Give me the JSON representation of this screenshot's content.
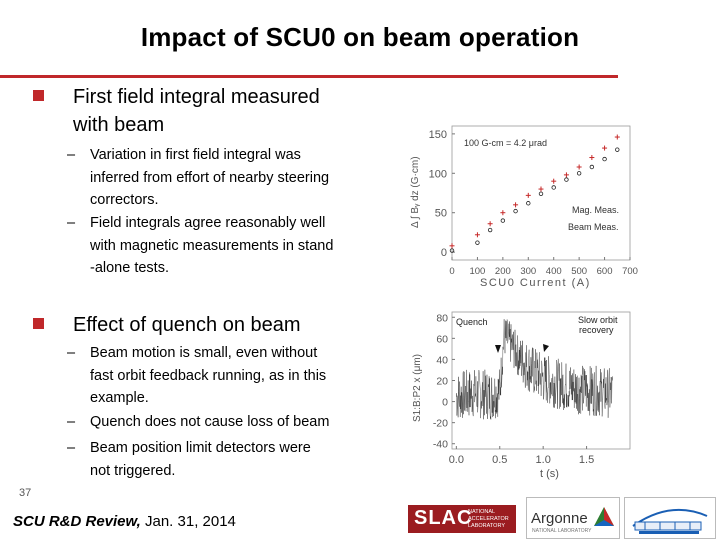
{
  "slide": {
    "title": "Impact of SCU0 on beam operation",
    "number": "37"
  },
  "bullets": [
    {
      "text_line1": "First field integral measured",
      "text_line2": "with beam",
      "subs": [
        {
          "lines": [
            "Variation in first field integral was",
            "inferred from effort of nearby steering",
            "correctors."
          ]
        },
        {
          "lines": [
            "Field integrals agree reasonably well",
            "with magnetic measurements in stand",
            "-alone tests."
          ]
        }
      ]
    },
    {
      "text_line1": "Effect of quench on beam",
      "subs": [
        {
          "lines": [
            "Beam motion is small, even without",
            "fast orbit feedback running, as in this",
            "example."
          ]
        },
        {
          "lines": [
            "Quench does not cause loss of beam"
          ]
        },
        {
          "lines": [
            "Beam position limit detectors were",
            "not triggered."
          ]
        }
      ]
    }
  ],
  "footer": {
    "review": "SCU R&D Review,",
    "date": "Jan. 31, 2014"
  },
  "logos": {
    "slac": "SLAC",
    "slac_sub": [
      "NATIONAL",
      "ACCELERATOR",
      "LABORATORY"
    ],
    "argonne": "Argonne",
    "argonne_tag": "NATIONAL LABORATORY"
  },
  "chart_data": [
    {
      "type": "scatter",
      "title": "",
      "annotation": "100 G-cm = 4.2 μrad",
      "xlabel": "SCU0 Current (A)",
      "ylabel": "Δ ∫ Bᵧ dz (G·cm)",
      "xlim": [
        0,
        700
      ],
      "ylim": [
        -10,
        160
      ],
      "xticks": [
        "0",
        "100",
        "200",
        "300",
        "400",
        "500",
        "600",
        "700"
      ],
      "yticks": [
        "0",
        "50",
        "100",
        "150"
      ],
      "legend": [
        "Mag. Meas.",
        "Beam Meas."
      ],
      "legend_placement": "bottom-right",
      "series": [
        {
          "name": "Mag. Meas.",
          "marker": "circle",
          "x": [
            0,
            100,
            150,
            200,
            250,
            300,
            350,
            400,
            450,
            500,
            550,
            600,
            650
          ],
          "y": [
            2,
            12,
            28,
            40,
            52,
            62,
            74,
            82,
            92,
            100,
            108,
            118,
            130
          ]
        },
        {
          "name": "Beam Meas.",
          "marker": "plus",
          "x": [
            0,
            100,
            150,
            200,
            250,
            300,
            350,
            400,
            450,
            500,
            550,
            600,
            650
          ],
          "y": [
            8,
            22,
            36,
            50,
            60,
            72,
            80,
            90,
            98,
            108,
            120,
            132,
            146
          ]
        }
      ],
      "tick_color": "#000000",
      "grid": true
    },
    {
      "type": "line",
      "title": "",
      "xlabel": "t (s)",
      "ylabel": "S1:B:P2 x (μm)",
      "xlim": [
        -0.05,
        2.0
      ],
      "ylim": [
        -45,
        85
      ],
      "xticks": [
        "0.0",
        "0.5",
        "1.0",
        "1.5"
      ],
      "yticks": [
        "80",
        "60",
        "40",
        "20",
        "0",
        "-20",
        "-40"
      ],
      "annotations": [
        "Quench",
        "Slow orbit recovery"
      ],
      "series": [
        {
          "name": "",
          "x": [
            0.0,
            0.2,
            0.4,
            0.5,
            0.55,
            0.6,
            0.65,
            0.7,
            0.8,
            0.9,
            1.0,
            1.2,
            1.4,
            1.6,
            1.8
          ],
          "y": [
            5,
            8,
            6,
            10,
            62,
            58,
            52,
            45,
            35,
            28,
            22,
            16,
            12,
            10,
            8
          ]
        }
      ],
      "line_color": "#222222"
    }
  ]
}
